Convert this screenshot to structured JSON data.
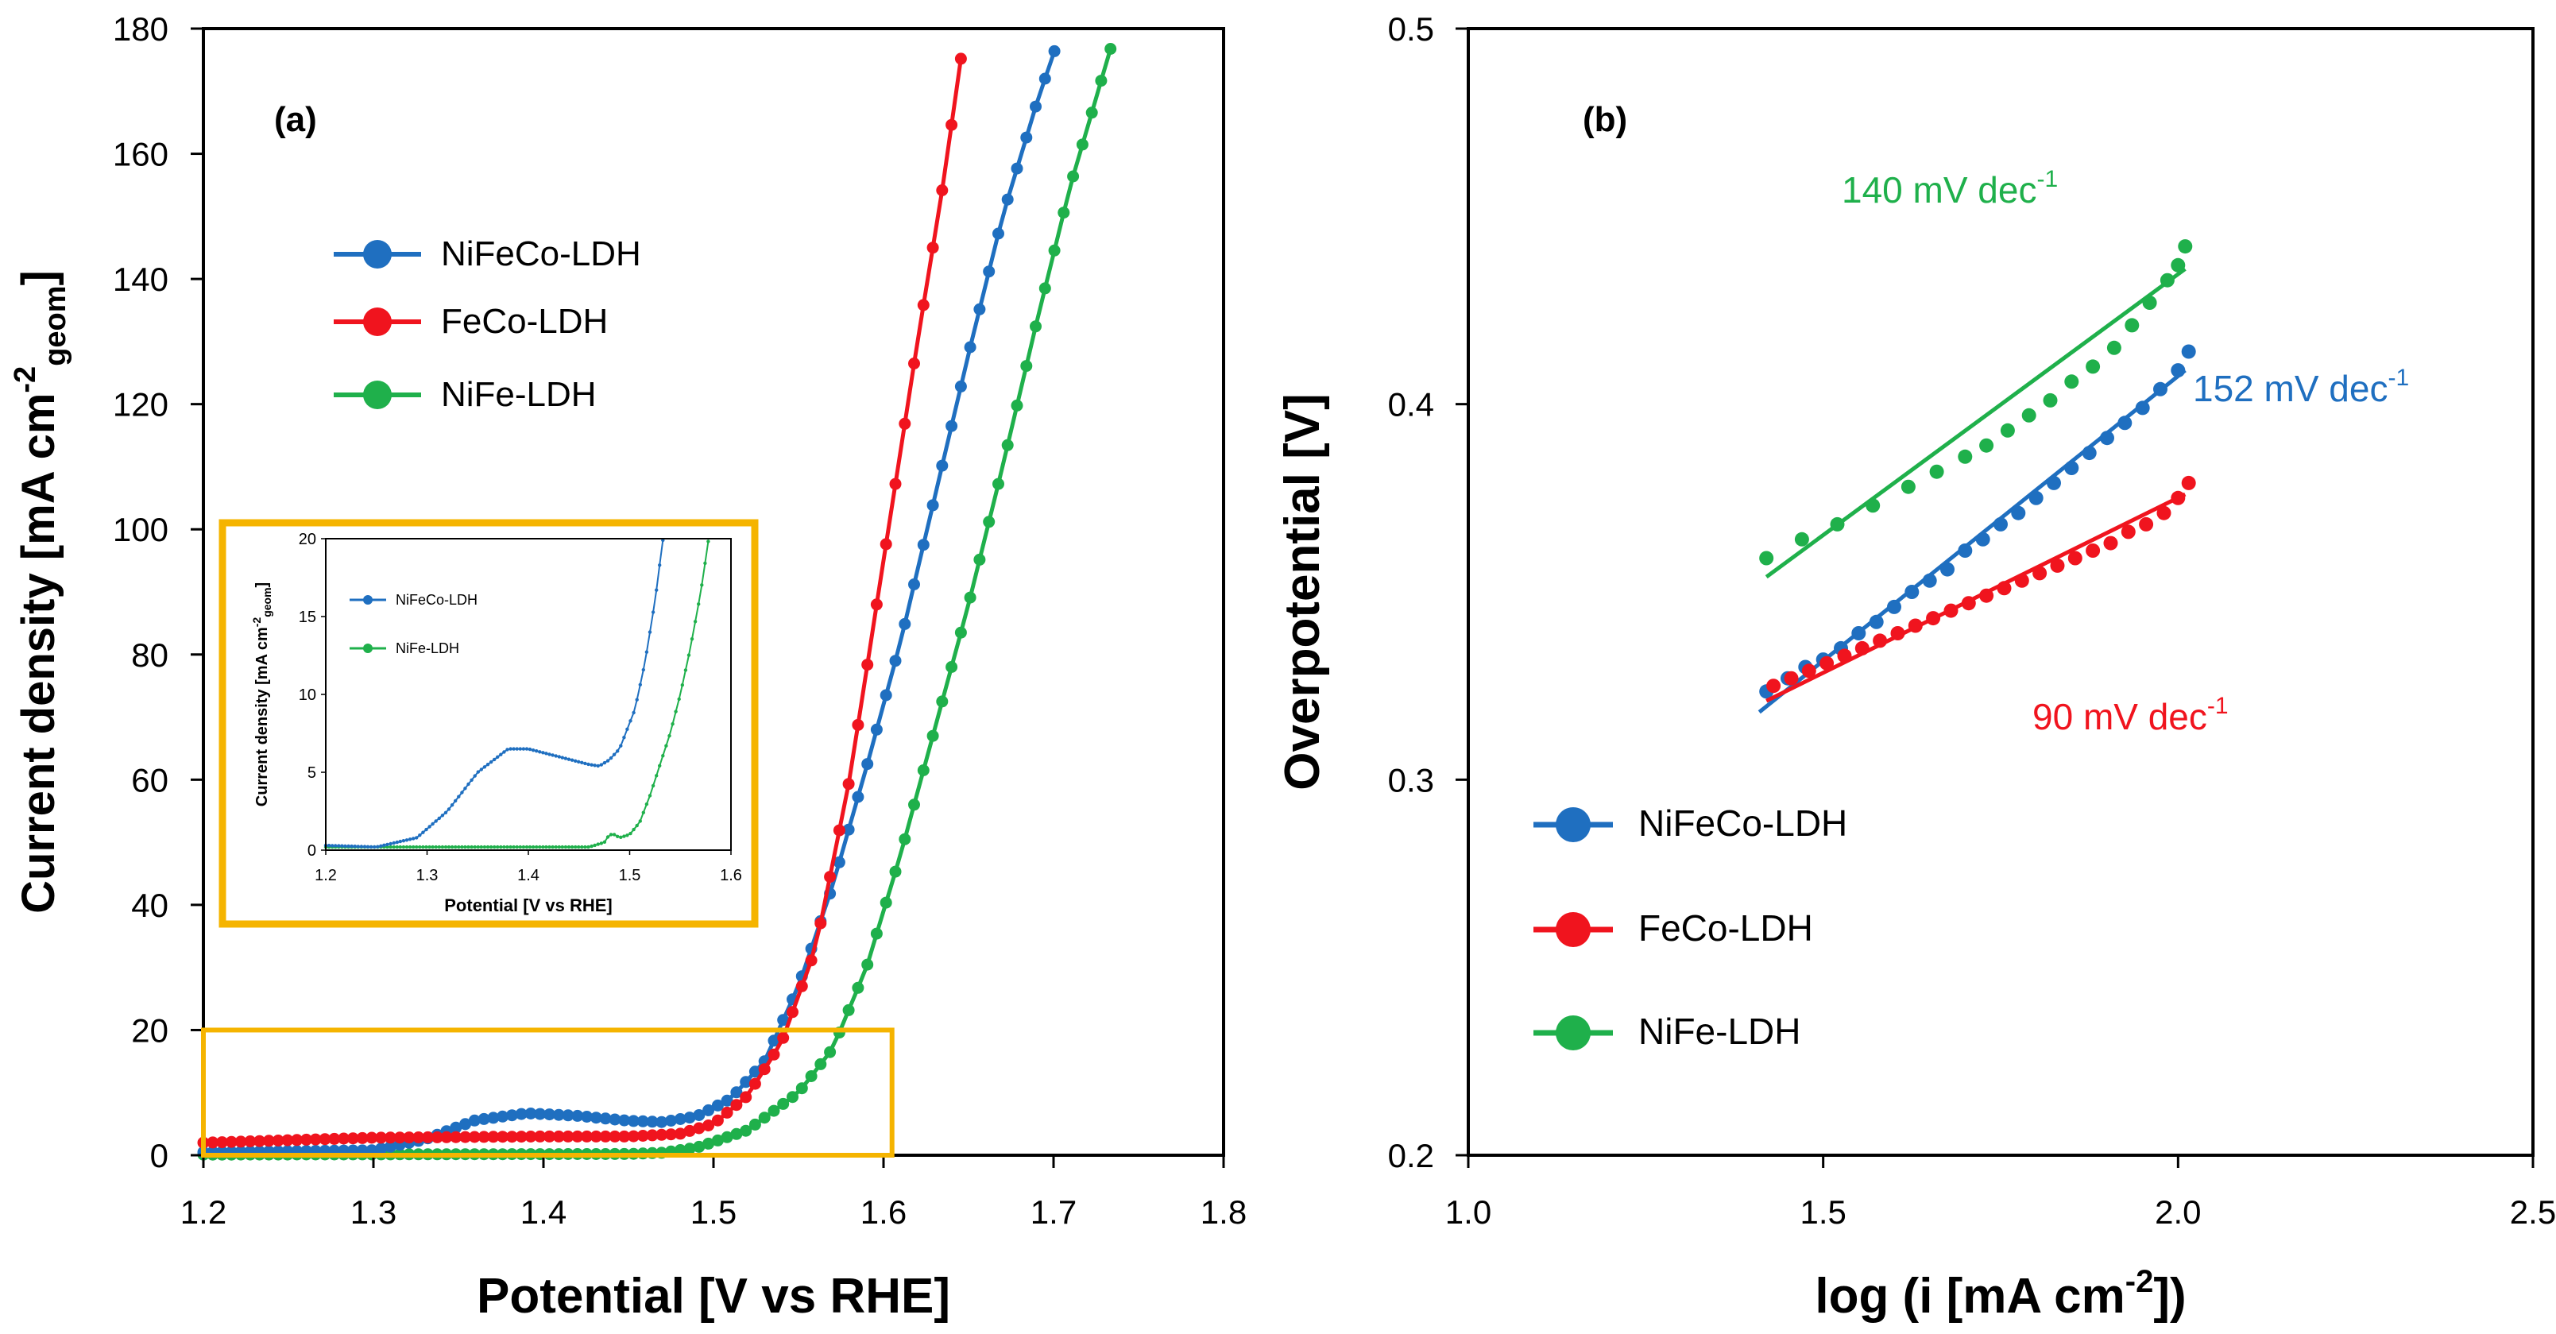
{
  "colors": {
    "blue": "#1f6fc0",
    "red": "#f0141e",
    "green": "#1fb04b",
    "orange": "#f5b400",
    "axis": "#000000"
  },
  "chart_data": [
    {
      "type": "line",
      "panel": "(a)",
      "xlabel": "Potential [V vs RHE]",
      "ylabel_main": "Current density [mA cm",
      "ylabel_sup": "-2",
      "ylabel_sub": "geom",
      "ylabel_end": "]",
      "xlim": [
        1.2,
        1.8
      ],
      "ylim": [
        0,
        180
      ],
      "xticks": [
        "1.2",
        "1.3",
        "1.4",
        "1.5",
        "1.6",
        "1.7",
        "1.8"
      ],
      "yticks": [
        "0",
        "20",
        "40",
        "60",
        "80",
        "100",
        "120",
        "140",
        "160",
        "180"
      ],
      "legend": [
        "NiFeCo-LDH",
        "FeCo-LDH",
        "NiFe-LDH"
      ],
      "series": [
        {
          "name": "NiFeCo-LDH",
          "color": "blue",
          "curve": [
            [
              1.2,
              0.5
            ],
            [
              1.3,
              0.8
            ],
            [
              1.33,
              2.5
            ],
            [
              1.36,
              5.6
            ],
            [
              1.39,
              6.7
            ],
            [
              1.42,
              6.3
            ],
            [
              1.45,
              5.5
            ],
            [
              1.47,
              5.3
            ],
            [
              1.49,
              6.2
            ],
            [
              1.51,
              9.0
            ],
            [
              1.53,
              15
            ],
            [
              1.55,
              27
            ],
            [
              1.57,
              43
            ],
            [
              1.59,
              62
            ],
            [
              1.61,
              82
            ],
            [
              1.63,
              105
            ],
            [
              1.65,
              128
            ],
            [
              1.67,
              150
            ],
            [
              1.69,
              168
            ],
            [
              1.705,
              180
            ]
          ]
        },
        {
          "name": "FeCo-LDH",
          "color": "red",
          "curve": [
            [
              1.2,
              2.0
            ],
            [
              1.3,
              2.8
            ],
            [
              1.4,
              3.0
            ],
            [
              1.45,
              3.0
            ],
            [
              1.48,
              3.4
            ],
            [
              1.5,
              5.0
            ],
            [
              1.52,
              9.5
            ],
            [
              1.54,
              18
            ],
            [
              1.56,
              33
            ],
            [
              1.58,
              60
            ],
            [
              1.6,
              95
            ],
            [
              1.62,
              130
            ],
            [
              1.635,
              155
            ],
            [
              1.648,
              180
            ]
          ]
        },
        {
          "name": "NiFe-LDH",
          "color": "green",
          "curve": [
            [
              1.2,
              0.1
            ],
            [
              1.45,
              0.2
            ],
            [
              1.47,
              0.4
            ],
            [
              1.49,
              1.2
            ],
            [
              1.52,
              4.0
            ],
            [
              1.55,
              10
            ],
            [
              1.57,
              17
            ],
            [
              1.59,
              30
            ],
            [
              1.61,
              48
            ],
            [
              1.63,
              68
            ],
            [
              1.65,
              88
            ],
            [
              1.67,
              110
            ],
            [
              1.69,
              133
            ],
            [
              1.71,
              155
            ],
            [
              1.737,
              180
            ]
          ]
        }
      ],
      "zoom_box": {
        "x": [
          1.2,
          1.605
        ],
        "y": [
          0,
          20
        ]
      },
      "inset": {
        "xlabel": "Potential [V vs RHE]",
        "ylabel_main": "Current density [mA cm",
        "ylabel_sup": "-2",
        "ylabel_sub": "geom",
        "ylabel_end": "]",
        "xlim": [
          1.2,
          1.6
        ],
        "ylim": [
          0,
          20
        ],
        "xticks": [
          "1.2",
          "1.3",
          "1.4",
          "1.5",
          "1.6"
        ],
        "yticks": [
          "0",
          "5",
          "10",
          "15",
          "20"
        ],
        "legend": [
          "NiFeCo-LDH",
          "NiFe-LDH"
        ],
        "series": [
          {
            "name": "NiFeCo-LDH",
            "color": "blue",
            "curve": [
              [
                1.2,
                0.3
              ],
              [
                1.25,
                0.2
              ],
              [
                1.29,
                0.8
              ],
              [
                1.32,
                2.5
              ],
              [
                1.35,
                5.0
              ],
              [
                1.38,
                6.5
              ],
              [
                1.4,
                6.5
              ],
              [
                1.43,
                6.0
              ],
              [
                1.46,
                5.5
              ],
              [
                1.47,
                5.4
              ],
              [
                1.48,
                5.8
              ],
              [
                1.49,
                6.5
              ],
              [
                1.505,
                9
              ],
              [
                1.515,
                12
              ],
              [
                1.525,
                16
              ],
              [
                1.533,
                20
              ]
            ]
          },
          {
            "name": "NiFe-LDH",
            "color": "green",
            "curve": [
              [
                1.2,
                0.2
              ],
              [
                1.46,
                0.2
              ],
              [
                1.475,
                0.5
              ],
              [
                1.48,
                1.0
              ],
              [
                1.485,
                1.0
              ],
              [
                1.49,
                0.8
              ],
              [
                1.5,
                1.0
              ],
              [
                1.51,
                1.8
              ],
              [
                1.52,
                3.5
              ],
              [
                1.53,
                5.5
              ],
              [
                1.54,
                7.5
              ],
              [
                1.55,
                10
              ],
              [
                1.56,
                13
              ],
              [
                1.57,
                16.5
              ],
              [
                1.578,
                20
              ]
            ]
          }
        ]
      }
    },
    {
      "type": "scatter",
      "panel": "(b)",
      "xlabel_main": "log (i [mA cm",
      "xlabel_sup": "-2",
      "xlabel_end": "])",
      "ylabel": "Overpotential [V]",
      "xlim": [
        1.0,
        2.5
      ],
      "ylim": [
        0.2,
        0.5
      ],
      "xticks": [
        "1.0",
        "1.5",
        "2.0",
        "2.5"
      ],
      "yticks": [
        "0.2",
        "0.3",
        "0.4",
        "0.5"
      ],
      "legend": [
        "NiFeCo-LDH",
        "FeCo-LDH",
        "NiFe-LDH"
      ],
      "series": [
        {
          "name": "NiFeCo-LDH",
          "color": "blue",
          "slope_label": "152 mV dec",
          "slope_sup": "-1",
          "x": [
            1.42,
            1.45,
            1.475,
            1.5,
            1.525,
            1.55,
            1.575,
            1.6,
            1.625,
            1.65,
            1.675,
            1.7,
            1.725,
            1.75,
            1.775,
            1.8,
            1.825,
            1.85,
            1.875,
            1.9,
            1.925,
            1.95,
            1.975,
            2.0,
            2.015
          ],
          "y": [
            0.3235,
            0.327,
            0.33,
            0.332,
            0.335,
            0.339,
            0.342,
            0.346,
            0.35,
            0.353,
            0.356,
            0.361,
            0.364,
            0.368,
            0.371,
            0.375,
            0.379,
            0.383,
            0.387,
            0.391,
            0.395,
            0.399,
            0.404,
            0.409,
            0.414
          ],
          "fit": [
            [
              1.41,
              0.318
            ],
            [
              2.01,
              0.409
            ]
          ]
        },
        {
          "name": "FeCo-LDH",
          "color": "red",
          "slope_label": "90 mV dec",
          "slope_sup": "-1",
          "x": [
            1.43,
            1.455,
            1.48,
            1.505,
            1.53,
            1.555,
            1.58,
            1.605,
            1.63,
            1.655,
            1.68,
            1.705,
            1.73,
            1.755,
            1.78,
            1.805,
            1.83,
            1.855,
            1.88,
            1.905,
            1.93,
            1.955,
            1.98,
            2.0,
            2.015
          ],
          "y": [
            0.325,
            0.327,
            0.329,
            0.331,
            0.333,
            0.335,
            0.337,
            0.339,
            0.341,
            0.343,
            0.345,
            0.347,
            0.349,
            0.351,
            0.353,
            0.355,
            0.357,
            0.359,
            0.361,
            0.363,
            0.366,
            0.368,
            0.371,
            0.375,
            0.379
          ],
          "fit": [
            [
              1.42,
              0.321
            ],
            [
              2.01,
              0.376
            ]
          ]
        },
        {
          "name": "NiFe-LDH",
          "color": "green",
          "slope_label": "140 mV dec",
          "slope_sup": "-1",
          "x": [
            1.42,
            1.47,
            1.52,
            1.57,
            1.62,
            1.66,
            1.7,
            1.73,
            1.76,
            1.79,
            1.82,
            1.85,
            1.88,
            1.91,
            1.935,
            1.96,
            1.985,
            2.0,
            2.01
          ],
          "y": [
            0.359,
            0.364,
            0.368,
            0.373,
            0.378,
            0.382,
            0.386,
            0.389,
            0.393,
            0.397,
            0.401,
            0.406,
            0.41,
            0.415,
            0.421,
            0.427,
            0.433,
            0.437,
            0.442
          ],
          "fit": [
            [
              1.42,
              0.354
            ],
            [
              2.01,
              0.436
            ]
          ]
        }
      ]
    }
  ]
}
